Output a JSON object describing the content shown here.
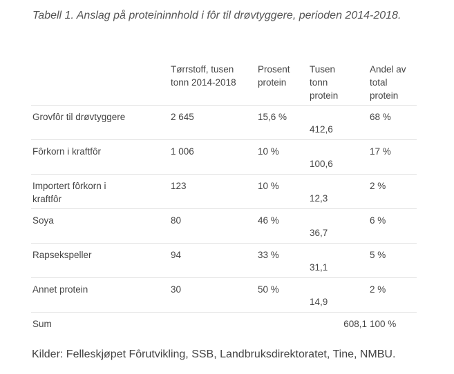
{
  "caption": "Tabell 1. Anslag på proteininnhold i fôr til drøvtyggere, perioden 2014-2018.",
  "table": {
    "headers": [
      "",
      "Tørrstoff, tusen tonn 2014-2018",
      "Prosent protein",
      "Tusen tonn protein",
      "Andel av total protein"
    ],
    "rows": [
      [
        "Grovfôr til drøvtyggere",
        "2 645",
        "15,6 %",
        "412,6",
        "68 %"
      ],
      [
        "Fôrkorn i kraftfôr",
        "1 006",
        "10 %",
        "100,6",
        "17 %"
      ],
      [
        "Importert fôrkorn i kraftfôr",
        "123",
        "10 %",
        "12,3",
        "2 %"
      ],
      [
        "Soya",
        "80",
        "46 %",
        "36,7",
        "6 %"
      ],
      [
        "Rapsekspeller",
        "94",
        "33 %",
        "31,1",
        "5 %"
      ],
      [
        "Annet protein",
        "30",
        "50 %",
        "14,9",
        "2 %"
      ]
    ],
    "sum": [
      "Sum",
      "",
      "",
      "608,1",
      "100 %"
    ]
  },
  "source": "Kilder: Felleskjøpet Fôrutvikling, SSB, Landbruksdirektoratet, Tine, NMBU."
}
